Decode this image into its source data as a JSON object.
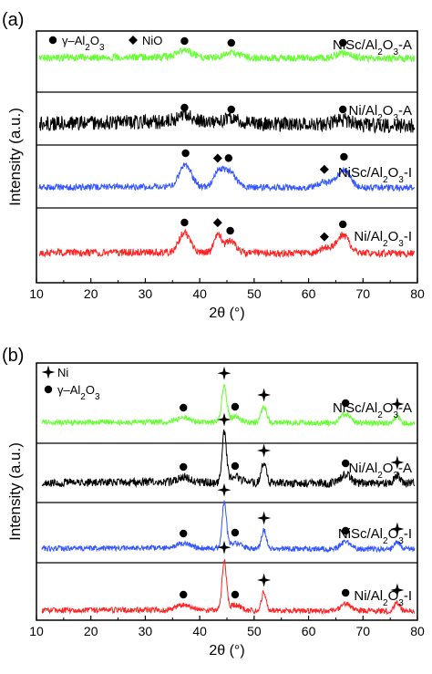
{
  "chart_data": [
    {
      "panel_label": "(a)",
      "type": "line",
      "xlabel": "2θ (°)",
      "ylabel": "Intensity (a.u.)",
      "xlim": [
        10,
        80
      ],
      "x_ticks": [
        "10",
        "20",
        "30",
        "40",
        "50",
        "60",
        "70",
        "80"
      ],
      "legend": [
        {
          "symbol": "circle",
          "name": "γ–Al2O3"
        },
        {
          "symbol": "diamond",
          "name": "NiO"
        }
      ],
      "series": [
        {
          "name": "NiSc/Al2O3-A",
          "color": "#66ff33",
          "markers": [
            {
              "symbol": "circle",
              "x": 37.2
            },
            {
              "symbol": "circle",
              "x": 45.8
            },
            {
              "symbol": "circle",
              "x": 66.3
            }
          ]
        },
        {
          "name": "Ni/Al2O3-A",
          "color": "#000000",
          "markers": [
            {
              "symbol": "circle",
              "x": 37.2
            },
            {
              "symbol": "circle",
              "x": 45.8
            },
            {
              "symbol": "circle",
              "x": 66.3
            }
          ]
        },
        {
          "name": "NiSc/Al2O3-I",
          "color": "#3355ff",
          "markers": [
            {
              "symbol": "circle",
              "x": 37.4
            },
            {
              "symbol": "diamond",
              "x": 43.3
            },
            {
              "symbol": "circle",
              "x": 45.3
            },
            {
              "symbol": "diamond",
              "x": 62.9
            },
            {
              "symbol": "circle",
              "x": 66.5
            }
          ]
        },
        {
          "name": "Ni/Al2O3-I",
          "color": "#ff2222",
          "markers": [
            {
              "symbol": "circle",
              "x": 37.2
            },
            {
              "symbol": "diamond",
              "x": 43.3
            },
            {
              "symbol": "circle",
              "x": 45.6
            },
            {
              "symbol": "diamond",
              "x": 62.9
            },
            {
              "symbol": "circle",
              "x": 66.3
            }
          ]
        }
      ]
    },
    {
      "panel_label": "(b)",
      "type": "line",
      "xlabel": "2θ (°)",
      "ylabel": "Intensity (a.u.)",
      "xlim": [
        10,
        80
      ],
      "x_ticks": [
        "10",
        "20",
        "30",
        "40",
        "50",
        "60",
        "70",
        "80"
      ],
      "legend": [
        {
          "symbol": "star",
          "name": "Ni"
        },
        {
          "symbol": "circle",
          "name": "γ–Al2O3"
        }
      ],
      "series": [
        {
          "name": "NiSc/Al2O3-A",
          "color": "#66ff33",
          "markers": [
            {
              "symbol": "circle",
              "x": 37
            },
            {
              "symbol": "star",
              "x": 44.5
            },
            {
              "symbol": "circle",
              "x": 46.5
            },
            {
              "symbol": "star",
              "x": 51.8
            },
            {
              "symbol": "circle",
              "x": 66.8
            },
            {
              "symbol": "star",
              "x": 76.3
            }
          ]
        },
        {
          "name": "Ni/Al2O3-A",
          "color": "#000000",
          "markers": [
            {
              "symbol": "circle",
              "x": 37
            },
            {
              "symbol": "star",
              "x": 44.5
            },
            {
              "symbol": "circle",
              "x": 46.5
            },
            {
              "symbol": "star",
              "x": 51.8
            },
            {
              "symbol": "circle",
              "x": 66.8
            },
            {
              "symbol": "star",
              "x": 76.3
            }
          ]
        },
        {
          "name": "NiSc/Al2O3-I",
          "color": "#3355ff",
          "markers": [
            {
              "symbol": "circle",
              "x": 37
            },
            {
              "symbol": "star",
              "x": 44.5
            },
            {
              "symbol": "circle",
              "x": 46.5
            },
            {
              "symbol": "star",
              "x": 51.8
            },
            {
              "symbol": "circle",
              "x": 66.8
            },
            {
              "symbol": "star",
              "x": 76.3
            }
          ]
        },
        {
          "name": "Ni/Al2O3-I",
          "color": "#ff2222",
          "markers": [
            {
              "symbol": "circle",
              "x": 37
            },
            {
              "symbol": "star",
              "x": 44.5
            },
            {
              "symbol": "circle",
              "x": 46.5
            },
            {
              "symbol": "star",
              "x": 51.8
            },
            {
              "symbol": "circle",
              "x": 66.8
            },
            {
              "symbol": "star",
              "x": 76.3
            }
          ]
        }
      ]
    }
  ]
}
